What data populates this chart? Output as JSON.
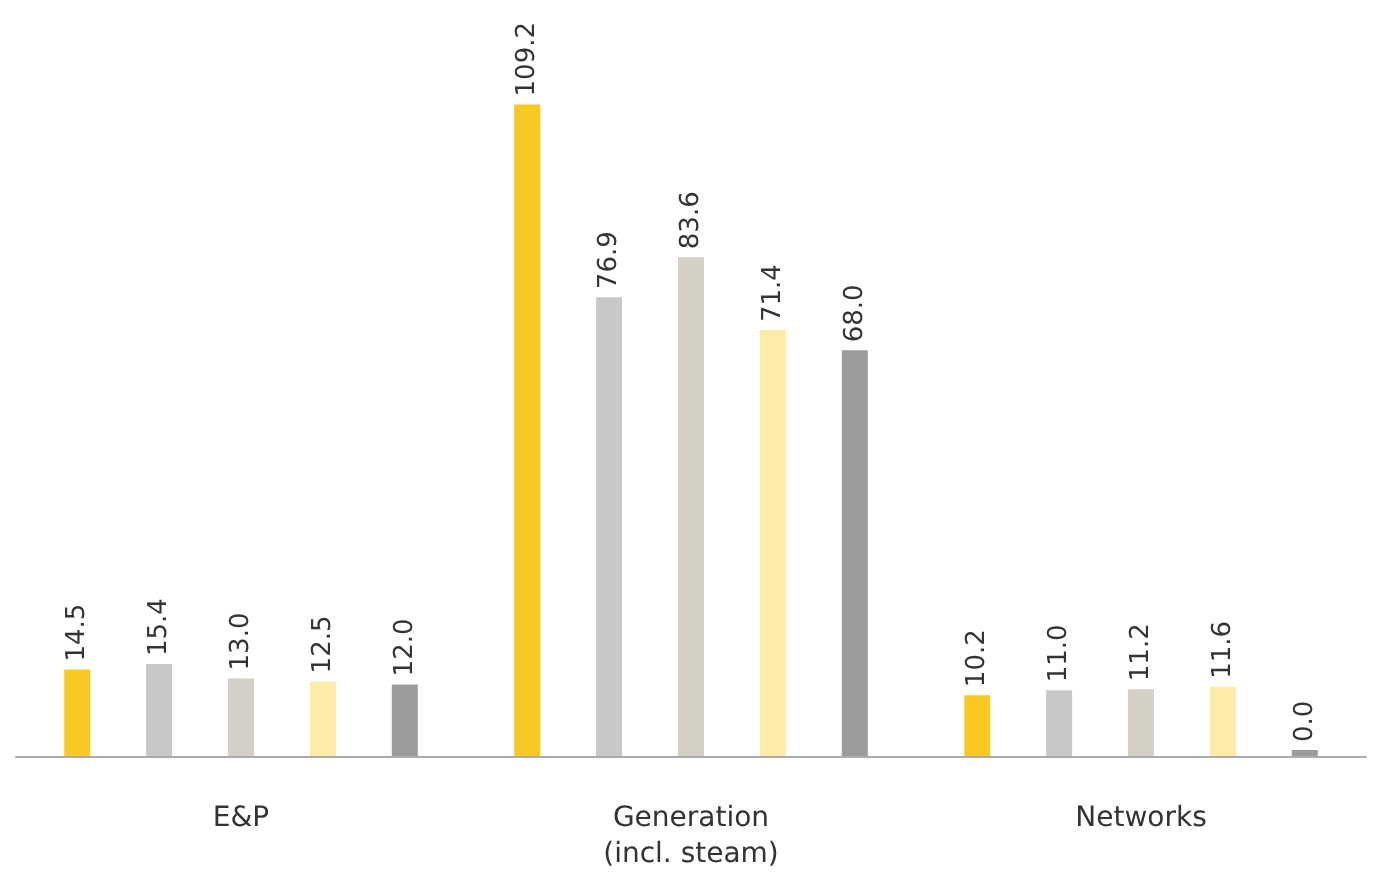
{
  "chart_data": {
    "type": "bar",
    "categories": [
      "E&P",
      "Generation\n(incl. steam)",
      "Networks"
    ],
    "series": [
      {
        "color": "#f9c923",
        "values": [
          14.5,
          109.2,
          10.2
        ],
        "value_labels": [
          "14.5",
          "109.2",
          "10.2"
        ]
      },
      {
        "color": "#c8c8c8",
        "values": [
          15.4,
          76.9,
          11.0
        ],
        "value_labels": [
          "15.4",
          "76.9",
          "11.0"
        ]
      },
      {
        "color": "#d4d0c5",
        "values": [
          13.0,
          83.6,
          11.2
        ],
        "value_labels": [
          "13.0",
          "83.6",
          "11.2"
        ]
      },
      {
        "color": "#fdeba8",
        "values": [
          12.5,
          71.4,
          11.6
        ],
        "value_labels": [
          "12.5",
          "71.4",
          "11.6"
        ]
      },
      {
        "color": "#9b9b9b",
        "values": [
          12.0,
          68.0,
          0.0
        ],
        "value_labels": [
          "12.0",
          "68.0",
          "0.0"
        ]
      }
    ],
    "grid": false
  }
}
